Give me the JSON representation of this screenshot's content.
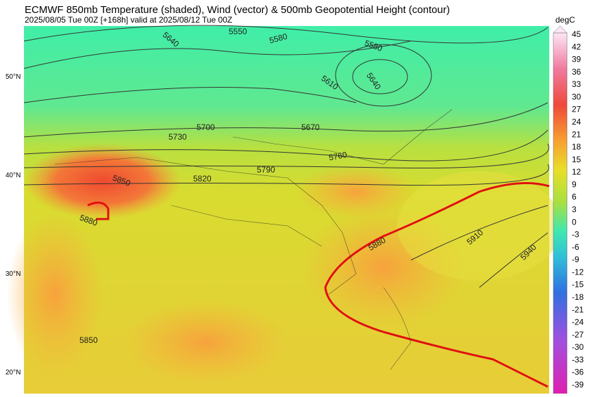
{
  "header": {
    "title": "ECMWF 850mb Temperature (shaded), Wind (vector) & 500mb Geopotential Height (contour)",
    "subtitle": "2025/08/05 Tue 00Z [+168h] valid at 2025/08/12 Tue 00Z"
  },
  "map": {
    "lat_labels": [
      "50°N",
      "40°N",
      "30°N",
      "20°N"
    ],
    "contour_labels": [
      "5550",
      "5580",
      "5640",
      "5580",
      "5610",
      "5640",
      "5700",
      "5670",
      "5730",
      "5760",
      "5790",
      "5820",
      "5850",
      "5880",
      "5880",
      "5910",
      "5940",
      "5850"
    ]
  },
  "colorbar": {
    "unit": "degC",
    "labels": [
      45,
      42,
      39,
      36,
      33,
      30,
      27,
      24,
      21,
      18,
      15,
      12,
      9,
      6,
      3,
      0,
      -3,
      -6,
      -9,
      -12,
      -15,
      -18,
      -21,
      -24,
      -27,
      -30,
      -33,
      -36,
      -39
    ]
  }
}
